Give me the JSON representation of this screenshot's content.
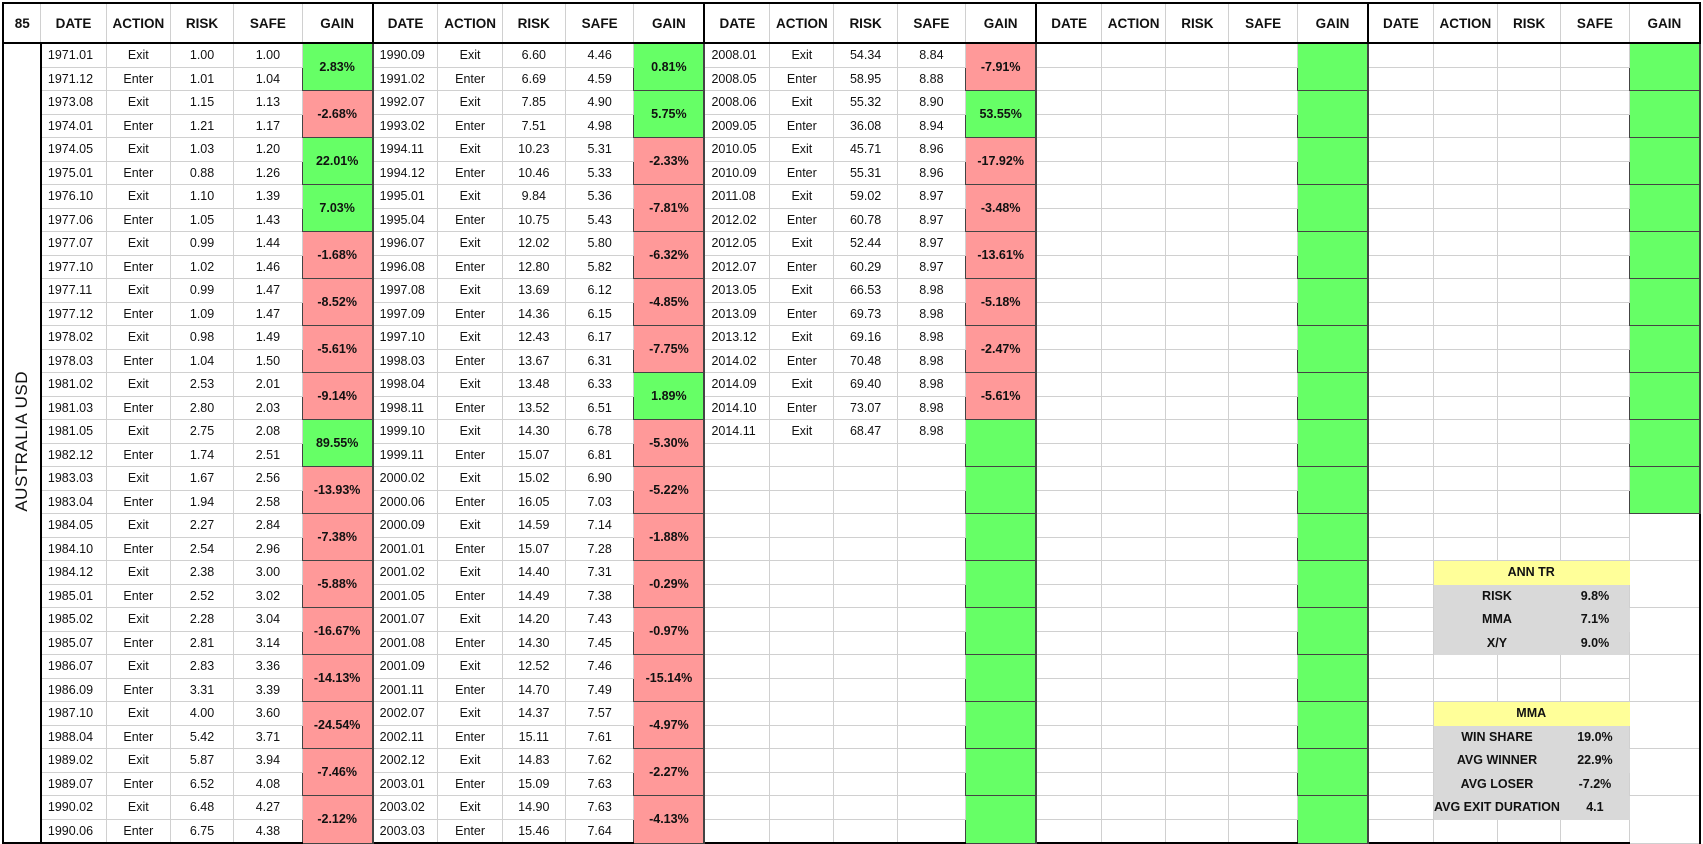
{
  "sheet": {
    "corner_label": "85",
    "side_label": "AUSTRALIA USD",
    "headers": [
      "DATE",
      "ACTION",
      "RISK",
      "SAFE",
      "GAIN"
    ],
    "groups": [
      {
        "rows": [
          [
            "1971.01",
            "Exit",
            "1.00",
            "1.00"
          ],
          [
            "1971.12",
            "Enter",
            "1.01",
            "1.04"
          ],
          [
            "1973.08",
            "Exit",
            "1.15",
            "1.13"
          ],
          [
            "1974.01",
            "Enter",
            "1.21",
            "1.17"
          ],
          [
            "1974.05",
            "Exit",
            "1.03",
            "1.20"
          ],
          [
            "1975.01",
            "Enter",
            "0.88",
            "1.26"
          ],
          [
            "1976.10",
            "Exit",
            "1.10",
            "1.39"
          ],
          [
            "1977.06",
            "Enter",
            "1.05",
            "1.43"
          ],
          [
            "1977.07",
            "Exit",
            "0.99",
            "1.44"
          ],
          [
            "1977.10",
            "Enter",
            "1.02",
            "1.46"
          ],
          [
            "1977.11",
            "Exit",
            "0.99",
            "1.47"
          ],
          [
            "1977.12",
            "Enter",
            "1.09",
            "1.47"
          ],
          [
            "1978.02",
            "Exit",
            "0.98",
            "1.49"
          ],
          [
            "1978.03",
            "Enter",
            "1.04",
            "1.50"
          ],
          [
            "1981.02",
            "Exit",
            "2.53",
            "2.01"
          ],
          [
            "1981.03",
            "Enter",
            "2.80",
            "2.03"
          ],
          [
            "1981.05",
            "Exit",
            "2.75",
            "2.08"
          ],
          [
            "1982.12",
            "Enter",
            "1.74",
            "2.51"
          ],
          [
            "1983.03",
            "Exit",
            "1.67",
            "2.56"
          ],
          [
            "1983.04",
            "Enter",
            "1.94",
            "2.58"
          ],
          [
            "1984.05",
            "Exit",
            "2.27",
            "2.84"
          ],
          [
            "1984.10",
            "Enter",
            "2.54",
            "2.96"
          ],
          [
            "1984.12",
            "Exit",
            "2.38",
            "3.00"
          ],
          [
            "1985.01",
            "Enter",
            "2.52",
            "3.02"
          ],
          [
            "1985.02",
            "Exit",
            "2.28",
            "3.04"
          ],
          [
            "1985.07",
            "Enter",
            "2.81",
            "3.14"
          ],
          [
            "1986.07",
            "Exit",
            "2.83",
            "3.36"
          ],
          [
            "1986.09",
            "Enter",
            "3.31",
            "3.39"
          ],
          [
            "1987.10",
            "Exit",
            "4.00",
            "3.60"
          ],
          [
            "1988.04",
            "Enter",
            "5.42",
            "3.71"
          ],
          [
            "1989.02",
            "Exit",
            "5.87",
            "3.94"
          ],
          [
            "1989.07",
            "Enter",
            "6.52",
            "4.08"
          ],
          [
            "1990.02",
            "Exit",
            "6.48",
            "4.27"
          ],
          [
            "1990.06",
            "Enter",
            "6.75",
            "4.38"
          ]
        ],
        "gains": [
          {
            "text": "2.83%",
            "sign": "pos"
          },
          {
            "text": "-2.68%",
            "sign": "neg"
          },
          {
            "text": "22.01%",
            "sign": "pos"
          },
          {
            "text": "7.03%",
            "sign": "pos"
          },
          {
            "text": "-1.68%",
            "sign": "neg"
          },
          {
            "text": "-8.52%",
            "sign": "neg"
          },
          {
            "text": "-5.61%",
            "sign": "neg"
          },
          {
            "text": "-9.14%",
            "sign": "neg"
          },
          {
            "text": "89.55%",
            "sign": "pos"
          },
          {
            "text": "-13.93%",
            "sign": "neg"
          },
          {
            "text": "-7.38%",
            "sign": "neg"
          },
          {
            "text": "-5.88%",
            "sign": "neg"
          },
          {
            "text": "-16.67%",
            "sign": "neg"
          },
          {
            "text": "-14.13%",
            "sign": "neg"
          },
          {
            "text": "-24.54%",
            "sign": "neg"
          },
          {
            "text": "-7.46%",
            "sign": "neg"
          },
          {
            "text": "-2.12%",
            "sign": "neg"
          }
        ]
      },
      {
        "rows": [
          [
            "1990.09",
            "Exit",
            "6.60",
            "4.46"
          ],
          [
            "1991.02",
            "Enter",
            "6.69",
            "4.59"
          ],
          [
            "1992.07",
            "Exit",
            "7.85",
            "4.90"
          ],
          [
            "1993.02",
            "Enter",
            "7.51",
            "4.98"
          ],
          [
            "1994.11",
            "Exit",
            "10.23",
            "5.31"
          ],
          [
            "1994.12",
            "Enter",
            "10.46",
            "5.33"
          ],
          [
            "1995.01",
            "Exit",
            "9.84",
            "5.36"
          ],
          [
            "1995.04",
            "Enter",
            "10.75",
            "5.43"
          ],
          [
            "1996.07",
            "Exit",
            "12.02",
            "5.80"
          ],
          [
            "1996.08",
            "Enter",
            "12.80",
            "5.82"
          ],
          [
            "1997.08",
            "Exit",
            "13.69",
            "6.12"
          ],
          [
            "1997.09",
            "Enter",
            "14.36",
            "6.15"
          ],
          [
            "1997.10",
            "Exit",
            "12.43",
            "6.17"
          ],
          [
            "1998.03",
            "Enter",
            "13.67",
            "6.31"
          ],
          [
            "1998.04",
            "Exit",
            "13.48",
            "6.33"
          ],
          [
            "1998.11",
            "Enter",
            "13.52",
            "6.51"
          ],
          [
            "1999.10",
            "Exit",
            "14.30",
            "6.78"
          ],
          [
            "1999.11",
            "Enter",
            "15.07",
            "6.81"
          ],
          [
            "2000.02",
            "Exit",
            "15.02",
            "6.90"
          ],
          [
            "2000.06",
            "Enter",
            "16.05",
            "7.03"
          ],
          [
            "2000.09",
            "Exit",
            "14.59",
            "7.14"
          ],
          [
            "2001.01",
            "Enter",
            "15.07",
            "7.28"
          ],
          [
            "2001.02",
            "Exit",
            "14.40",
            "7.31"
          ],
          [
            "2001.05",
            "Enter",
            "14.49",
            "7.38"
          ],
          [
            "2001.07",
            "Exit",
            "14.20",
            "7.43"
          ],
          [
            "2001.08",
            "Enter",
            "14.30",
            "7.45"
          ],
          [
            "2001.09",
            "Exit",
            "12.52",
            "7.46"
          ],
          [
            "2001.11",
            "Enter",
            "14.70",
            "7.49"
          ],
          [
            "2002.07",
            "Exit",
            "14.37",
            "7.57"
          ],
          [
            "2002.11",
            "Enter",
            "15.11",
            "7.61"
          ],
          [
            "2002.12",
            "Exit",
            "14.83",
            "7.62"
          ],
          [
            "2003.01",
            "Enter",
            "15.09",
            "7.63"
          ],
          [
            "2003.02",
            "Exit",
            "14.90",
            "7.63"
          ],
          [
            "2003.03",
            "Enter",
            "15.46",
            "7.64"
          ]
        ],
        "gains": [
          {
            "text": "0.81%",
            "sign": "pos"
          },
          {
            "text": "5.75%",
            "sign": "pos"
          },
          {
            "text": "-2.33%",
            "sign": "neg"
          },
          {
            "text": "-7.81%",
            "sign": "neg"
          },
          {
            "text": "-6.32%",
            "sign": "neg"
          },
          {
            "text": "-4.85%",
            "sign": "neg"
          },
          {
            "text": "-7.75%",
            "sign": "neg"
          },
          {
            "text": "1.89%",
            "sign": "pos"
          },
          {
            "text": "-5.30%",
            "sign": "neg"
          },
          {
            "text": "-5.22%",
            "sign": "neg"
          },
          {
            "text": "-1.88%",
            "sign": "neg"
          },
          {
            "text": "-0.29%",
            "sign": "neg"
          },
          {
            "text": "-0.97%",
            "sign": "neg"
          },
          {
            "text": "-15.14%",
            "sign": "neg"
          },
          {
            "text": "-4.97%",
            "sign": "neg"
          },
          {
            "text": "-2.27%",
            "sign": "neg"
          },
          {
            "text": "-4.13%",
            "sign": "neg"
          }
        ]
      },
      {
        "rows": [
          [
            "2008.01",
            "Exit",
            "54.34",
            "8.84"
          ],
          [
            "2008.05",
            "Enter",
            "58.95",
            "8.88"
          ],
          [
            "2008.06",
            "Exit",
            "55.32",
            "8.90"
          ],
          [
            "2009.05",
            "Enter",
            "36.08",
            "8.94"
          ],
          [
            "2010.05",
            "Exit",
            "45.71",
            "8.96"
          ],
          [
            "2010.09",
            "Enter",
            "55.31",
            "8.96"
          ],
          [
            "2011.08",
            "Exit",
            "59.02",
            "8.97"
          ],
          [
            "2012.02",
            "Enter",
            "60.78",
            "8.97"
          ],
          [
            "2012.05",
            "Exit",
            "52.44",
            "8.97"
          ],
          [
            "2012.07",
            "Enter",
            "60.29",
            "8.97"
          ],
          [
            "2013.05",
            "Exit",
            "66.53",
            "8.98"
          ],
          [
            "2013.09",
            "Enter",
            "69.73",
            "8.98"
          ],
          [
            "2013.12",
            "Exit",
            "69.16",
            "8.98"
          ],
          [
            "2014.02",
            "Enter",
            "70.48",
            "8.98"
          ],
          [
            "2014.09",
            "Exit",
            "69.40",
            "8.98"
          ],
          [
            "2014.10",
            "Enter",
            "73.07",
            "8.98"
          ],
          [
            "2014.11",
            "Exit",
            "68.47",
            "8.98"
          ]
        ],
        "gains": [
          {
            "text": "-7.91%",
            "sign": "neg"
          },
          {
            "text": "53.55%",
            "sign": "pos"
          },
          {
            "text": "-17.92%",
            "sign": "neg"
          },
          {
            "text": "-3.48%",
            "sign": "neg"
          },
          {
            "text": "-13.61%",
            "sign": "neg"
          },
          {
            "text": "-5.18%",
            "sign": "neg"
          },
          {
            "text": "-2.47%",
            "sign": "neg"
          },
          {
            "text": "-5.61%",
            "sign": "neg"
          },
          {
            "text": "",
            "sign": "pos"
          },
          {
            "text": "",
            "sign": "pos"
          },
          {
            "text": "",
            "sign": "pos"
          },
          {
            "text": "",
            "sign": "pos"
          },
          {
            "text": "",
            "sign": "pos"
          },
          {
            "text": "",
            "sign": "pos"
          },
          {
            "text": "",
            "sign": "pos"
          },
          {
            "text": "",
            "sign": "pos"
          },
          {
            "text": "",
            "sign": "pos"
          }
        ]
      },
      {
        "rows": [],
        "gains": [
          {
            "text": "",
            "sign": "pos"
          },
          {
            "text": "",
            "sign": "pos"
          },
          {
            "text": "",
            "sign": "pos"
          },
          {
            "text": "",
            "sign": "pos"
          },
          {
            "text": "",
            "sign": "pos"
          },
          {
            "text": "",
            "sign": "pos"
          },
          {
            "text": "",
            "sign": "pos"
          },
          {
            "text": "",
            "sign": "pos"
          },
          {
            "text": "",
            "sign": "pos"
          },
          {
            "text": "",
            "sign": "pos"
          },
          {
            "text": "",
            "sign": "pos"
          },
          {
            "text": "",
            "sign": "pos"
          },
          {
            "text": "",
            "sign": "pos"
          },
          {
            "text": "",
            "sign": "pos"
          },
          {
            "text": "",
            "sign": "pos"
          },
          {
            "text": "",
            "sign": "pos"
          },
          {
            "text": "",
            "sign": "pos"
          }
        ]
      },
      {
        "rows": [],
        "gains": [
          {
            "text": "",
            "sign": "pos"
          },
          {
            "text": "",
            "sign": "pos"
          },
          {
            "text": "",
            "sign": "pos"
          },
          {
            "text": "",
            "sign": "pos"
          },
          {
            "text": "",
            "sign": "pos"
          },
          {
            "text": "",
            "sign": "pos"
          },
          {
            "text": "",
            "sign": "pos"
          },
          {
            "text": "",
            "sign": "pos"
          },
          {
            "text": "",
            "sign": "pos"
          },
          {
            "text": "",
            "sign": "pos"
          },
          {
            "text": "",
            "sign": "none"
          },
          {
            "text": "",
            "sign": "none"
          },
          {
            "text": "",
            "sign": "none"
          },
          {
            "text": "",
            "sign": "none"
          },
          {
            "text": "",
            "sign": "none"
          },
          {
            "text": "",
            "sign": "none"
          },
          {
            "text": "",
            "sign": "none"
          }
        ]
      }
    ],
    "stats": {
      "ann_tr": {
        "title": "ANN TR",
        "items": [
          [
            "RISK",
            "9.8%"
          ],
          [
            "MMA",
            "7.1%"
          ],
          [
            "X/Y",
            "9.0%"
          ]
        ]
      },
      "mma": {
        "title": "MMA",
        "items": [
          [
            "WIN SHARE",
            "19.0%"
          ],
          [
            "AVG WINNER",
            "22.9%"
          ],
          [
            "AVG LOSER",
            "-7.2%"
          ],
          [
            "AVG EXIT DURATION",
            "4.1"
          ]
        ]
      }
    },
    "colors": {
      "gain_positive": "#66ff66",
      "gain_negative": "#ff9999",
      "stat_title": "#ffff99",
      "stat_body": "#d9d9d9"
    }
  }
}
